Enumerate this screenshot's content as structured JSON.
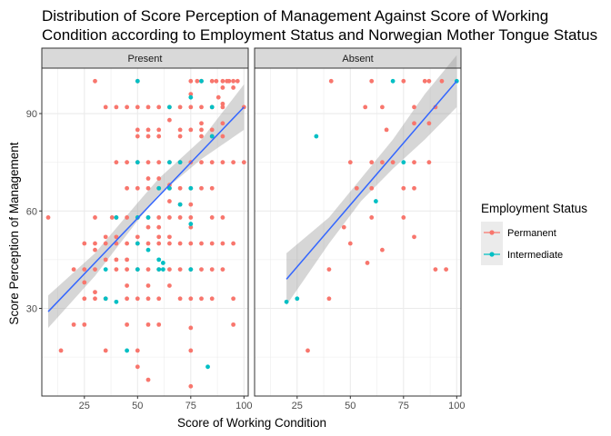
{
  "chart_data": {
    "type": "scatter",
    "title": [
      "Distribution of Score Perception of Management Against Score of Working",
      " Condition according to Employment Status and Norwegian Mother Tongue Status"
    ],
    "xlabel": "Score of Working Condition",
    "ylabel": "Score Perception of Management",
    "xlim": [
      5,
      102
    ],
    "ylim": [
      3,
      104
    ],
    "x_ticks": [
      25,
      50,
      75,
      100
    ],
    "y_ticks": [
      30,
      60,
      90
    ],
    "grid": true,
    "legend": {
      "title": "Employment Status",
      "position": "right",
      "entries": [
        {
          "label": "Permanent",
          "color": "#F8766D"
        },
        {
          "label": "Intermediate",
          "color": "#00BFC4"
        }
      ]
    },
    "smooth_color": "#3366FF",
    "ribbon_color": "#999999",
    "strip_fill": "#D9D9D9",
    "panels": [
      {
        "strip": "Present",
        "series": [
          {
            "name": "Permanent",
            "color": "#F8766D",
            "points": [
              [
                30,
                100
              ],
              [
                50,
                100
              ],
              [
                75,
                100
              ],
              [
                78,
                100
              ],
              [
                80,
                100
              ],
              [
                85,
                100
              ],
              [
                87,
                100
              ],
              [
                90,
                100
              ],
              [
                92,
                100
              ],
              [
                93,
                100
              ],
              [
                95,
                100
              ],
              [
                97,
                100
              ],
              [
                90,
                98
              ],
              [
                95,
                98
              ],
              [
                75,
                96
              ],
              [
                88,
                95
              ],
              [
                90,
                93
              ],
              [
                100,
                92
              ],
              [
                35,
                92
              ],
              [
                40,
                92
              ],
              [
                45,
                92
              ],
              [
                50,
                92
              ],
              [
                55,
                92
              ],
              [
                60,
                92
              ],
              [
                65,
                92
              ],
              [
                70,
                92
              ],
              [
                75,
                92
              ],
              [
                80,
                92
              ],
              [
                85,
                92
              ],
              [
                90,
                92
              ],
              [
                65,
                88
              ],
              [
                80,
                87
              ],
              [
                90,
                87
              ],
              [
                50,
                85
              ],
              [
                55,
                85
              ],
              [
                60,
                85
              ],
              [
                70,
                85
              ],
              [
                75,
                85
              ],
              [
                80,
                85
              ],
              [
                85,
                85
              ],
              [
                50,
                83
              ],
              [
                55,
                83
              ],
              [
                60,
                83
              ],
              [
                70,
                83
              ],
              [
                80,
                83
              ],
              [
                85,
                83
              ],
              [
                90,
                83
              ],
              [
                40,
                75
              ],
              [
                45,
                75
              ],
              [
                50,
                75
              ],
              [
                55,
                75
              ],
              [
                60,
                75
              ],
              [
                65,
                75
              ],
              [
                70,
                75
              ],
              [
                75,
                75
              ],
              [
                80,
                75
              ],
              [
                85,
                75
              ],
              [
                90,
                75
              ],
              [
                95,
                75
              ],
              [
                100,
                75
              ],
              [
                55,
                70
              ],
              [
                60,
                70
              ],
              [
                65,
                68
              ],
              [
                70,
                67
              ],
              [
                75,
                67
              ],
              [
                80,
                67
              ],
              [
                45,
                67
              ],
              [
                50,
                67
              ],
              [
                55,
                67
              ],
              [
                60,
                67
              ],
              [
                65,
                67
              ],
              [
                85,
                67
              ],
              [
                65,
                63
              ],
              [
                70,
                62
              ],
              [
                75,
                62
              ],
              [
                45,
                58
              ],
              [
                50,
                58
              ],
              [
                55,
                58
              ],
              [
                60,
                58
              ],
              [
                65,
                58
              ],
              [
                70,
                58
              ],
              [
                75,
                58
              ],
              [
                85,
                58
              ],
              [
                90,
                58
              ],
              [
                8,
                58
              ],
              [
                30,
                58
              ],
              [
                38,
                58
              ],
              [
                40,
                58
              ],
              [
                55,
                55
              ],
              [
                60,
                55
              ],
              [
                75,
                55
              ],
              [
                35,
                52
              ],
              [
                40,
                52
              ],
              [
                50,
                52
              ],
              [
                60,
                52
              ],
              [
                65,
                52
              ],
              [
                25,
                50
              ],
              [
                30,
                50
              ],
              [
                35,
                50
              ],
              [
                40,
                50
              ],
              [
                45,
                50
              ],
              [
                50,
                50
              ],
              [
                55,
                50
              ],
              [
                60,
                50
              ],
              [
                65,
                50
              ],
              [
                70,
                50
              ],
              [
                75,
                50
              ],
              [
                80,
                50
              ],
              [
                85,
                50
              ],
              [
                90,
                50
              ],
              [
                95,
                50
              ],
              [
                30,
                48
              ],
              [
                35,
                45
              ],
              [
                40,
                45
              ],
              [
                45,
                45
              ],
              [
                20,
                42
              ],
              [
                25,
                42
              ],
              [
                30,
                42
              ],
              [
                40,
                42
              ],
              [
                45,
                42
              ],
              [
                50,
                42
              ],
              [
                55,
                42
              ],
              [
                60,
                42
              ],
              [
                65,
                42
              ],
              [
                70,
                42
              ],
              [
                75,
                42
              ],
              [
                80,
                42
              ],
              [
                85,
                42
              ],
              [
                90,
                42
              ],
              [
                25,
                38
              ],
              [
                30,
                35
              ],
              [
                45,
                37
              ],
              [
                55,
                37
              ],
              [
                65,
                37
              ],
              [
                25,
                33
              ],
              [
                30,
                33
              ],
              [
                35,
                33
              ],
              [
                45,
                33
              ],
              [
                50,
                33
              ],
              [
                55,
                33
              ],
              [
                60,
                33
              ],
              [
                70,
                33
              ],
              [
                75,
                33
              ],
              [
                80,
                33
              ],
              [
                85,
                33
              ],
              [
                95,
                33
              ],
              [
                20,
                25
              ],
              [
                25,
                25
              ],
              [
                45,
                25
              ],
              [
                55,
                25
              ],
              [
                60,
                25
              ],
              [
                75,
                24
              ],
              [
                95,
                25
              ],
              [
                14,
                17
              ],
              [
                35,
                17
              ],
              [
                50,
                17
              ],
              [
                75,
                17
              ],
              [
                50,
                12
              ],
              [
                55,
                8
              ],
              [
                75,
                6
              ]
            ]
          },
          {
            "name": "Intermediate",
            "color": "#00BFC4",
            "points": [
              [
                50,
                100
              ],
              [
                80,
                100
              ],
              [
                75,
                95
              ],
              [
                65,
                92
              ],
              [
                85,
                92
              ],
              [
                85,
                83
              ],
              [
                50,
                75
              ],
              [
                65,
                75
              ],
              [
                70,
                75
              ],
              [
                60,
                67
              ],
              [
                65,
                67
              ],
              [
                75,
                67
              ],
              [
                70,
                62
              ],
              [
                40,
                58
              ],
              [
                50,
                58
              ],
              [
                55,
                58
              ],
              [
                50,
                50
              ],
              [
                75,
                56
              ],
              [
                60,
                45
              ],
              [
                50,
                42
              ],
              [
                60,
                42
              ],
              [
                62,
                42
              ],
              [
                75,
                42
              ],
              [
                35,
                42
              ],
              [
                40,
                32
              ],
              [
                35,
                33
              ],
              [
                45,
                17
              ],
              [
                83,
                12
              ],
              [
                55,
                48
              ],
              [
                62,
                44
              ]
            ]
          }
        ],
        "fit": [
          [
            8,
            29
          ],
          [
            100,
            92
          ]
        ],
        "band": [
          [
            8,
            34,
            24
          ],
          [
            30,
            47,
            40
          ],
          [
            50,
            62.5,
            57
          ],
          [
            60,
            70,
            65
          ],
          [
            80,
            82,
            76
          ],
          [
            100,
            99,
            85
          ]
        ]
      },
      {
        "strip": "Absent",
        "series": [
          {
            "name": "Permanent",
            "color": "#F8766D",
            "points": [
              [
                41,
                100
              ],
              [
                60,
                100
              ],
              [
                75,
                100
              ],
              [
                85,
                100
              ],
              [
                87,
                100
              ],
              [
                93,
                100
              ],
              [
                57,
                92
              ],
              [
                65,
                92
              ],
              [
                80,
                92
              ],
              [
                90,
                92
              ],
              [
                80,
                87
              ],
              [
                87,
                87
              ],
              [
                67,
                85
              ],
              [
                50,
                75
              ],
              [
                60,
                75
              ],
              [
                65,
                75
              ],
              [
                70,
                75
              ],
              [
                80,
                75
              ],
              [
                87,
                75
              ],
              [
                53,
                67
              ],
              [
                60,
                67
              ],
              [
                75,
                67
              ],
              [
                80,
                67
              ],
              [
                60,
                58
              ],
              [
                75,
                58
              ],
              [
                47,
                55
              ],
              [
                50,
                50
              ],
              [
                80,
                52
              ],
              [
                65,
                48
              ],
              [
                58,
                44
              ],
              [
                40,
                42
              ],
              [
                90,
                42
              ],
              [
                95,
                42
              ],
              [
                40,
                33
              ],
              [
                30,
                17
              ]
            ]
          },
          {
            "name": "Intermediate",
            "color": "#00BFC4",
            "points": [
              [
                70,
                100
              ],
              [
                100,
                100
              ],
              [
                34,
                83
              ],
              [
                62,
                63
              ],
              [
                75,
                75
              ],
              [
                25,
                33
              ],
              [
                20,
                32
              ]
            ]
          }
        ],
        "fit": [
          [
            20,
            39
          ],
          [
            100,
            100
          ]
        ],
        "band": [
          [
            20,
            47,
            31
          ],
          [
            40,
            58,
            50
          ],
          [
            55,
            70,
            63
          ],
          [
            70,
            82,
            73
          ],
          [
            85,
            96,
            82
          ],
          [
            100,
            108,
            92
          ]
        ]
      }
    ]
  }
}
